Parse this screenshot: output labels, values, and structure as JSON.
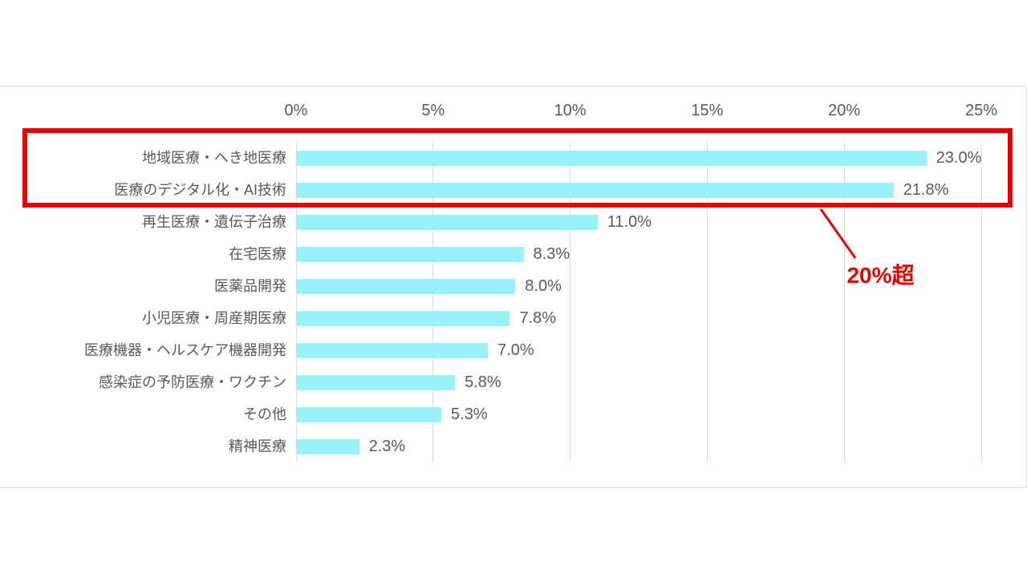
{
  "chart_data": {
    "type": "bar",
    "orientation": "horizontal",
    "title": "",
    "categories": [
      "地域医療・へき地医療",
      "医療のデジタル化・AI技術",
      "再生医療・遺伝子治療",
      "在宅医療",
      "医薬品開発",
      "小児医療・周産期医療",
      "医療機器・ヘルスケア機器開発",
      "感染症の予防医療・ワクチン",
      "その他",
      "精神医療"
    ],
    "values": [
      23.0,
      21.8,
      11.0,
      8.3,
      8.0,
      7.8,
      7.0,
      5.8,
      5.3,
      2.3
    ],
    "value_labels": [
      "23.0%",
      "21.8%",
      "11.0%",
      "8.3%",
      "8.0%",
      "7.8%",
      "7.0%",
      "5.8%",
      "5.3%",
      "2.3%"
    ],
    "x_ticks": [
      "0%",
      "5%",
      "10%",
      "15%",
      "20%",
      "25%"
    ],
    "x_tick_values": [
      0,
      5,
      10,
      15,
      20,
      25
    ],
    "xlim": [
      0,
      25
    ],
    "axis_position": "top",
    "grid": "vertical",
    "legend": "none",
    "bar_color": "#99F2F7",
    "gridline_color": "#D9D9D9",
    "frame_color": "#D9D9D9",
    "text_color": "#595959"
  },
  "annotation": {
    "label": "20%超",
    "color": "#E60000",
    "highlighted_categories": [
      "地域医療・へき地医療",
      "医療のデジタル化・AI技術"
    ]
  }
}
